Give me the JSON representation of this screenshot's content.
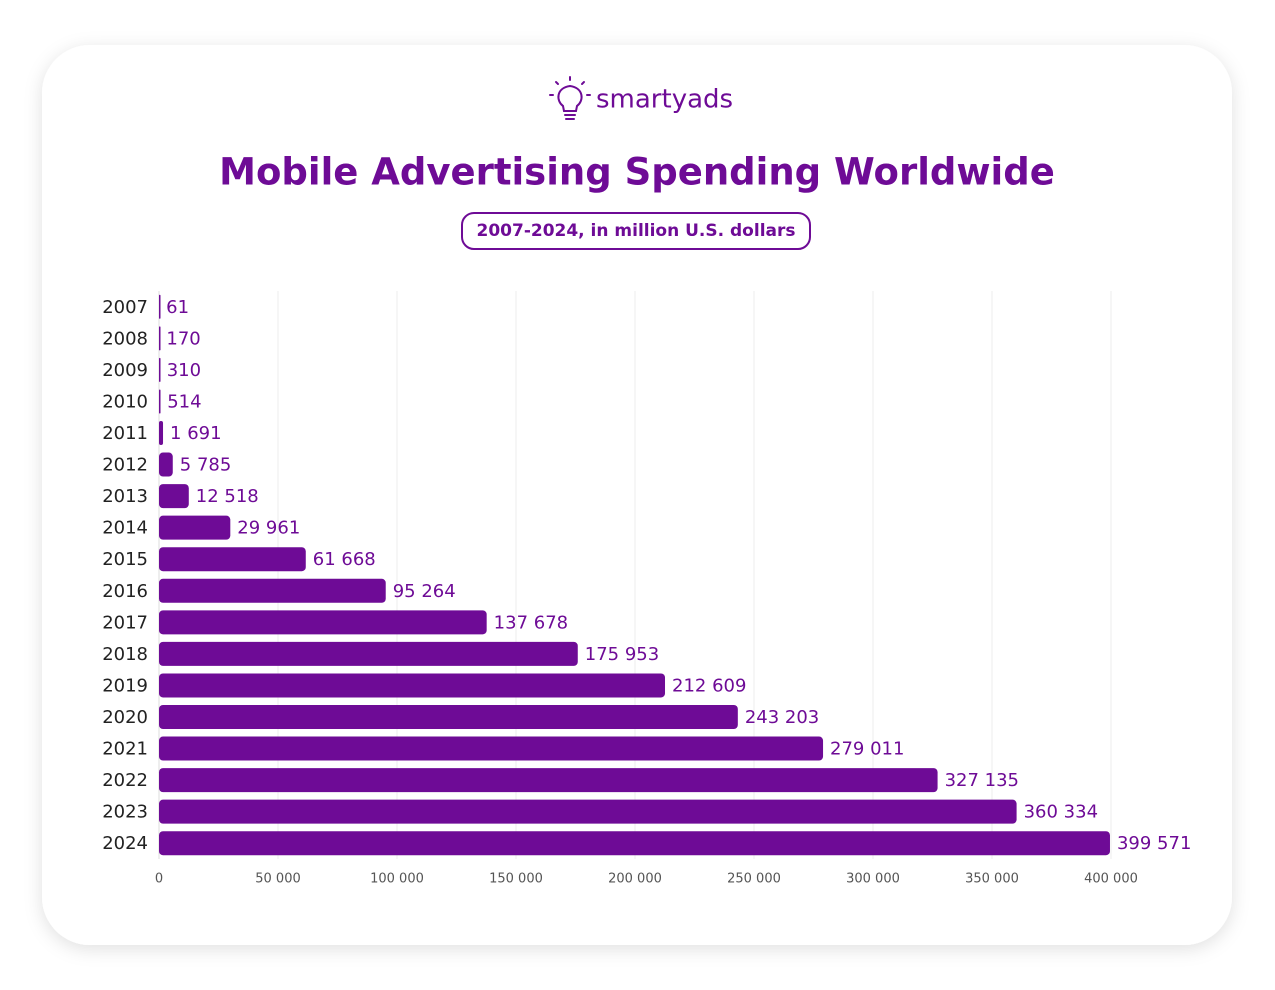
{
  "brand": "smartyads",
  "chart_data": {
    "type": "bar",
    "orientation": "horizontal",
    "title": "Mobile Advertising Spending Worldwide",
    "subtitle": "2007-2024, in million U.S. dollars",
    "categories": [
      "2007",
      "2008",
      "2009",
      "2010",
      "2011",
      "2012",
      "2013",
      "2014",
      "2015",
      "2016",
      "2017",
      "2018",
      "2019",
      "2020",
      "2021",
      "2022",
      "2023",
      "2024"
    ],
    "values": [
      61,
      170,
      310,
      514,
      1691,
      5785,
      12518,
      29961,
      61668,
      95264,
      137678,
      175953,
      212609,
      243203,
      279011,
      327135,
      360334,
      399571
    ],
    "value_labels": [
      "61",
      "170",
      "310",
      "514",
      "1 691",
      "5 785",
      "12 518",
      "29 961",
      "61 668",
      "95 264",
      "137 678",
      "175 953",
      "212 609",
      "243 203",
      "279 011",
      "327 135",
      "360 334",
      "399 571"
    ],
    "color": "#6e0b96",
    "xlim": [
      0,
      400000
    ],
    "xticks": [
      0,
      {
        "value": 50000,
        "label": "50 000"
      },
      {
        "value": 100000,
        "label": "100 000"
      },
      {
        "value": 150000,
        "label": "150 000"
      },
      {
        "value": 200000,
        "label": "200 000"
      },
      {
        "value": 250000,
        "label": "250 000"
      },
      {
        "value": 300000,
        "label": "300 000"
      },
      {
        "value": 350000,
        "label": "350 000"
      },
      {
        "value": 400000,
        "label": "400 000"
      }
    ],
    "grid": true
  }
}
